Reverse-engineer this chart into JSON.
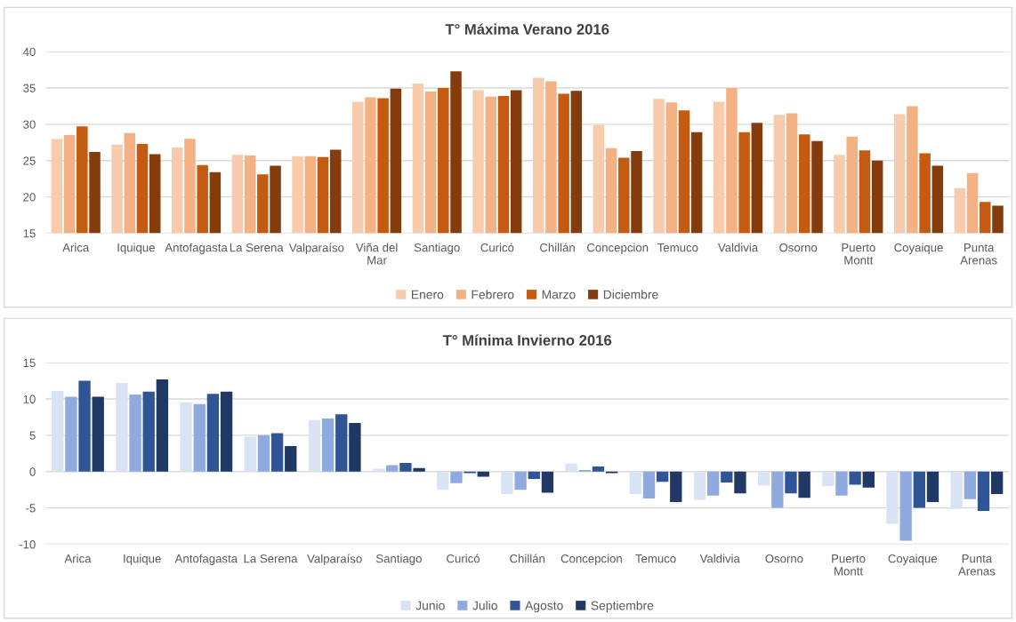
{
  "chart_data": [
    {
      "type": "bar",
      "title": "T° Máxima Verano 2016",
      "categories": [
        "Arica",
        "Iquique",
        "Antofagasta",
        "La Serena",
        "Valparaíso",
        "Viña del Mar",
        "Santiago",
        "Curicó",
        "Chillán",
        "Concepcion",
        "Temuco",
        "Valdivia",
        "Osorno",
        "Puerto Montt",
        "Coyaique",
        "Punta Arenas"
      ],
      "series": [
        {
          "name": "Enero",
          "color": "#f8cbad",
          "values": [
            28.0,
            27.2,
            26.8,
            25.8,
            25.6,
            33.1,
            35.6,
            34.7,
            36.4,
            29.9,
            33.5,
            33.1,
            31.3,
            25.8,
            31.4,
            21.2
          ]
        },
        {
          "name": "Febrero",
          "color": "#f4b183",
          "values": [
            28.5,
            28.8,
            28.0,
            25.7,
            25.6,
            33.7,
            34.5,
            33.8,
            35.9,
            26.7,
            33.0,
            35.0,
            31.5,
            28.3,
            32.5,
            23.3
          ]
        },
        {
          "name": "Marzo",
          "color": "#c55a11",
          "values": [
            29.7,
            27.3,
            24.4,
            23.1,
            25.5,
            33.6,
            35.0,
            33.9,
            34.2,
            25.4,
            31.9,
            28.9,
            28.6,
            26.4,
            26.0,
            19.3
          ]
        },
        {
          "name": "Diciembre",
          "color": "#843c0c",
          "values": [
            26.2,
            25.9,
            23.4,
            24.3,
            26.5,
            34.9,
            37.3,
            34.7,
            34.6,
            26.3,
            28.9,
            30.2,
            27.7,
            25.0,
            24.3,
            18.8
          ]
        }
      ],
      "ylim": [
        15,
        40
      ],
      "yticks": [
        15,
        20,
        25,
        30,
        35,
        40
      ],
      "grid": "y",
      "legend": "bottom"
    },
    {
      "type": "bar",
      "title": "T° Mínima Invierno 2016",
      "categories": [
        "Arica",
        "Iquique",
        "Antofagasta",
        "La Serena",
        "Valparaíso",
        "Santiago",
        "Curicó",
        "Chillán",
        "Concepcion",
        "Temuco",
        "Valdivia",
        "Osorno",
        "Puerto Montt",
        "Coyaique",
        "Punta Arenas"
      ],
      "series": [
        {
          "name": "Junio",
          "color": "#dae3f3",
          "values": [
            11.1,
            12.2,
            9.5,
            4.8,
            7.1,
            0.4,
            -2.5,
            -3.1,
            1.1,
            -3.1,
            -3.9,
            -1.9,
            -2.0,
            -7.2,
            -5.1
          ]
        },
        {
          "name": "Julio",
          "color": "#8faadc",
          "values": [
            10.3,
            10.6,
            9.3,
            5.0,
            7.3,
            0.9,
            -1.6,
            -2.5,
            0.2,
            -3.7,
            -3.3,
            -5.0,
            -3.3,
            -9.5,
            -3.8
          ]
        },
        {
          "name": "Agosto",
          "color": "#2f5597",
          "values": [
            12.5,
            11.0,
            10.7,
            5.3,
            7.9,
            1.2,
            -0.2,
            -1.0,
            0.7,
            -1.4,
            -1.5,
            -3.0,
            -1.8,
            -5.0,
            -5.4
          ]
        },
        {
          "name": "Septiembre",
          "color": "#203864",
          "values": [
            10.3,
            12.7,
            11.0,
            3.5,
            6.7,
            0.5,
            -0.7,
            -2.9,
            -0.2,
            -4.2,
            -3.0,
            -3.6,
            -2.2,
            -4.2,
            -3.1
          ]
        }
      ],
      "ylim": [
        -10,
        15
      ],
      "yticks": [
        -10,
        -5,
        0,
        5,
        10,
        15
      ],
      "grid": "y",
      "legend": "bottom"
    }
  ]
}
